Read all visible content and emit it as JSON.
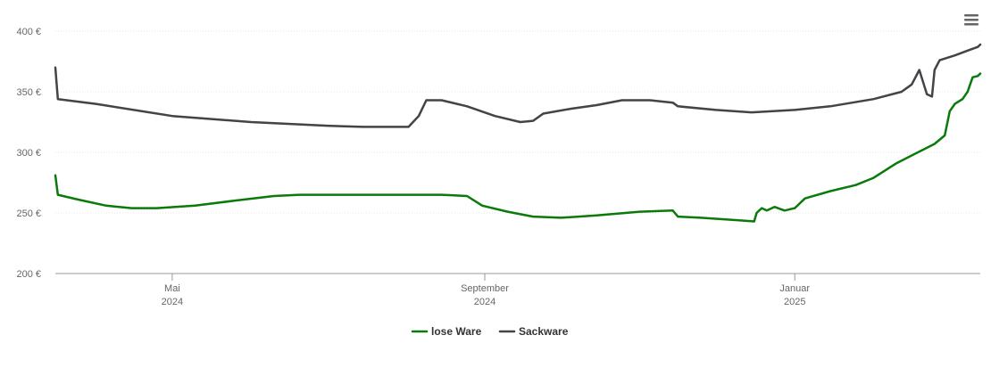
{
  "menu_icon": "hamburger-menu-icon",
  "chart_data": {
    "type": "line",
    "title": "",
    "xlabel": "",
    "ylabel": "",
    "ylim": [
      200,
      400
    ],
    "yticks": [
      {
        "value": 200,
        "label": "200 €"
      },
      {
        "value": 250,
        "label": "250 €"
      },
      {
        "value": 300,
        "label": "300 €"
      },
      {
        "value": 350,
        "label": "350 €"
      },
      {
        "value": 400,
        "label": "400 €"
      }
    ],
    "xlim": [
      "2024-03-16",
      "2025-03-15"
    ],
    "xticks": [
      {
        "date": "2024-05-01",
        "month": "Mai",
        "year": "2024"
      },
      {
        "date": "2024-09-01",
        "month": "September",
        "year": "2024"
      },
      {
        "date": "2025-01-01",
        "month": "Januar",
        "year": "2025"
      }
    ],
    "grid": true,
    "legend_position": "bottom-center",
    "series": [
      {
        "name": "lose Ware",
        "color": "#0a7a0a",
        "points": [
          [
            "2024-03-16",
            281
          ],
          [
            "2024-03-17",
            265
          ],
          [
            "2024-03-25",
            261
          ],
          [
            "2024-04-05",
            256
          ],
          [
            "2024-04-15",
            254
          ],
          [
            "2024-04-25",
            254
          ],
          [
            "2024-05-10",
            256
          ],
          [
            "2024-05-25",
            260
          ],
          [
            "2024-06-10",
            264
          ],
          [
            "2024-06-20",
            265
          ],
          [
            "2024-07-15",
            265
          ],
          [
            "2024-08-15",
            265
          ],
          [
            "2024-08-25",
            264
          ],
          [
            "2024-08-31",
            256
          ],
          [
            "2024-09-10",
            251
          ],
          [
            "2024-09-20",
            247
          ],
          [
            "2024-10-01",
            246
          ],
          [
            "2024-10-15",
            248
          ],
          [
            "2024-11-01",
            251
          ],
          [
            "2024-11-14",
            252
          ],
          [
            "2024-11-16",
            247
          ],
          [
            "2024-11-25",
            246
          ],
          [
            "2024-12-10",
            244
          ],
          [
            "2024-12-16",
            243
          ],
          [
            "2024-12-17",
            250
          ],
          [
            "2024-12-19",
            254
          ],
          [
            "2024-12-21",
            252
          ],
          [
            "2024-12-24",
            255
          ],
          [
            "2024-12-28",
            252
          ],
          [
            "2025-01-01",
            254
          ],
          [
            "2025-01-05",
            262
          ],
          [
            "2025-01-15",
            268
          ],
          [
            "2025-01-25",
            273
          ],
          [
            "2025-02-01",
            279
          ],
          [
            "2025-02-10",
            291
          ],
          [
            "2025-02-25",
            307
          ],
          [
            "2025-03-01",
            314
          ],
          [
            "2025-03-03",
            334
          ],
          [
            "2025-03-05",
            340
          ],
          [
            "2025-03-08",
            344
          ],
          [
            "2025-03-10",
            350
          ],
          [
            "2025-03-11",
            356
          ],
          [
            "2025-03-12",
            362
          ],
          [
            "2025-03-14",
            363
          ],
          [
            "2025-03-15",
            365
          ]
        ]
      },
      {
        "name": "Sackware",
        "color": "#434348",
        "points": [
          [
            "2024-03-16",
            370
          ],
          [
            "2024-03-17",
            344
          ],
          [
            "2024-04-01",
            340
          ],
          [
            "2024-05-01",
            330
          ],
          [
            "2024-06-01",
            325
          ],
          [
            "2024-07-01",
            322
          ],
          [
            "2024-07-15",
            321
          ],
          [
            "2024-08-02",
            321
          ],
          [
            "2024-08-06",
            330
          ],
          [
            "2024-08-09",
            343
          ],
          [
            "2024-08-15",
            343
          ],
          [
            "2024-08-25",
            338
          ],
          [
            "2024-09-05",
            330
          ],
          [
            "2024-09-15",
            325
          ],
          [
            "2024-09-20",
            326
          ],
          [
            "2024-09-24",
            332
          ],
          [
            "2024-10-05",
            336
          ],
          [
            "2024-10-15",
            339
          ],
          [
            "2024-10-25",
            343
          ],
          [
            "2024-11-05",
            343
          ],
          [
            "2024-11-14",
            341
          ],
          [
            "2024-11-16",
            338
          ],
          [
            "2024-12-01",
            335
          ],
          [
            "2024-12-15",
            333
          ],
          [
            "2025-01-01",
            335
          ],
          [
            "2025-01-15",
            338
          ],
          [
            "2025-02-01",
            344
          ],
          [
            "2025-02-12",
            350
          ],
          [
            "2025-02-16",
            356
          ],
          [
            "2025-02-19",
            368
          ],
          [
            "2025-02-22",
            348
          ],
          [
            "2025-02-24",
            346
          ],
          [
            "2025-02-25",
            368
          ],
          [
            "2025-02-27",
            376
          ],
          [
            "2025-03-05",
            380
          ],
          [
            "2025-03-10",
            384
          ],
          [
            "2025-03-14",
            387
          ],
          [
            "2025-03-15",
            389
          ]
        ]
      }
    ]
  }
}
